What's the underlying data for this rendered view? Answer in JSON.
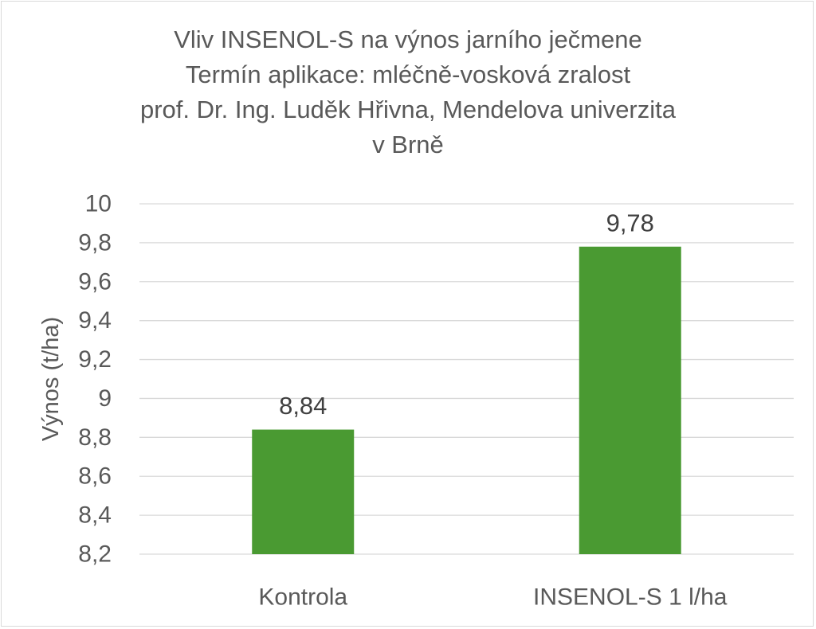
{
  "chart_data": {
    "type": "bar",
    "title_lines": [
      "Vliv INSENOL-S na výnos jarního ječmene",
      "Termín aplikace: mléčně-vosková zralost",
      "prof. Dr. Ing. Luděk Hřivna, Mendelova univerzita",
      "v Brně"
    ],
    "categories": [
      "Kontrola",
      "INSENOL-S 1 l/ha"
    ],
    "values": [
      8.84,
      9.78
    ],
    "value_labels": [
      "8,84",
      "9,78"
    ],
    "ylabel": "Výnos (t/ha)",
    "xlabel": "",
    "ylim": [
      8.2,
      10
    ],
    "yticks": [
      "8,2",
      "8,4",
      "8,6",
      "8,8",
      "9",
      "9,2",
      "9,4",
      "9,6",
      "9,8",
      "10"
    ],
    "grid": true,
    "legend": "none",
    "bar_color": "#4a9a32",
    "grid_color": "#d9d9d9",
    "text_color": "#595959",
    "label_color": "#404040"
  }
}
